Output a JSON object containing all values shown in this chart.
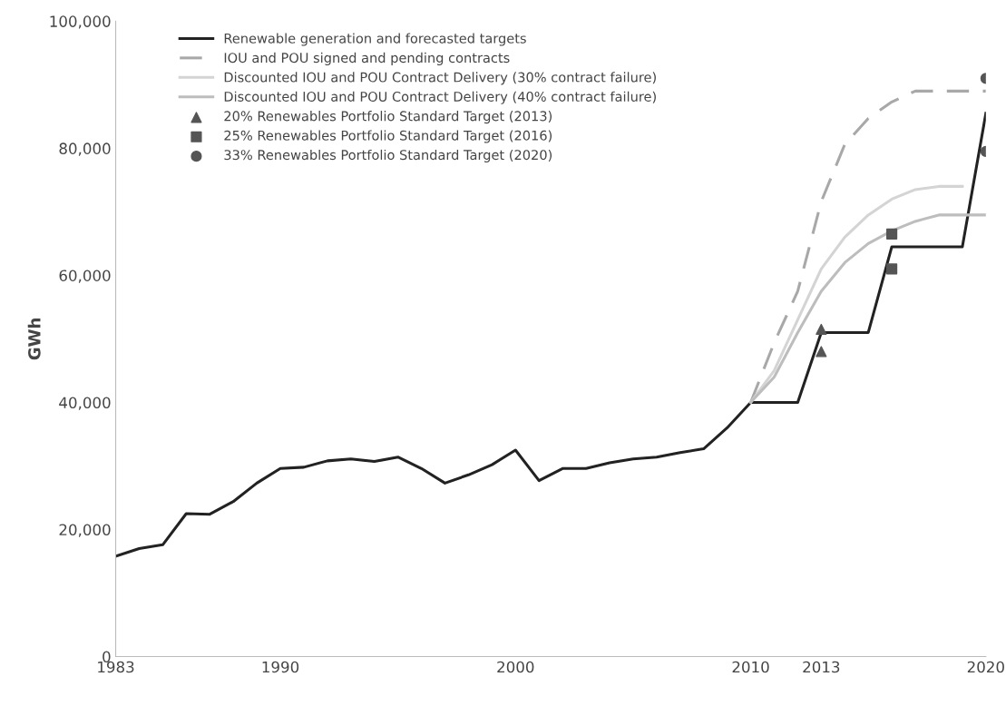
{
  "chart_data": {
    "type": "line",
    "ylabel": "GWh",
    "xlim": [
      1983,
      2020
    ],
    "xticks": [
      1983,
      1990,
      2000,
      2010,
      2013,
      2020
    ],
    "ylim": [
      0,
      100000
    ],
    "yticks": [
      {
        "value": 0,
        "label": "0"
      },
      {
        "value": 20000,
        "label": "20,000"
      },
      {
        "value": 40000,
        "label": "40,000"
      },
      {
        "value": 60000,
        "label": "60,000"
      },
      {
        "value": 80000,
        "label": "80,000"
      },
      {
        "value": 100000,
        "label": "100,000"
      }
    ],
    "grid": false,
    "legend": "top left",
    "series": [
      {
        "name": "Renewable generation and forecasted targets",
        "color": "#222222",
        "line_style": "solid",
        "marker": "none",
        "x": [
          1983,
          1984,
          1985,
          1986,
          1987,
          1988,
          1989,
          1990,
          1991,
          1992,
          1993,
          1994,
          1995,
          1996,
          1997,
          1998,
          1999,
          2000,
          2001,
          2002,
          2003,
          2004,
          2005,
          2006,
          2007,
          2008,
          2009,
          2010,
          2011,
          2012,
          2013,
          2014,
          2015,
          2016,
          2017,
          2018,
          2019,
          2020
        ],
        "values": [
          15800,
          17000,
          17600,
          22500,
          22400,
          24400,
          27300,
          29600,
          29800,
          30800,
          31100,
          30700,
          31400,
          29600,
          27300,
          28600,
          30200,
          32500,
          27700,
          29600,
          29600,
          30500,
          31100,
          31400,
          32100,
          32700,
          36000,
          40000,
          40000,
          40000,
          51000,
          51000,
          51000,
          64500,
          64500,
          64500,
          64500,
          85500
        ]
      },
      {
        "name": "IOU and POU signed and pending contracts",
        "color": "#a8a8a8",
        "line_style": "dashed",
        "marker": "none",
        "x": [
          2010,
          2011,
          2012,
          2013,
          2014,
          2015,
          2016,
          2017,
          2018,
          2019,
          2020
        ],
        "values": [
          40000,
          49400,
          57500,
          71600,
          80600,
          84700,
          87300,
          89000,
          89000,
          89000,
          89000
        ]
      },
      {
        "name": "Discounted IOU and POU Contract Delivery (30% contract failure)",
        "color": "#d4d4d4",
        "line_style": "solid",
        "marker": "none",
        "x": [
          2010,
          2011,
          2012,
          2013,
          2014,
          2015,
          2016,
          2017,
          2018,
          2019
        ],
        "values": [
          40000,
          45000,
          53000,
          61000,
          66000,
          69500,
          72000,
          73500,
          74000,
          74000
        ]
      },
      {
        "name": "Discounted IOU and POU Contract Delivery (40% contract failure)",
        "color": "#bdbdbd",
        "line_style": "solid",
        "marker": "none",
        "x": [
          2010,
          2011,
          2012,
          2013,
          2014,
          2015,
          2016,
          2017,
          2018,
          2019,
          2020
        ],
        "values": [
          40000,
          44000,
          51000,
          57500,
          62000,
          65000,
          67000,
          68500,
          69500,
          69500,
          69500
        ]
      },
      {
        "name": "20% Renewables Portfolio Standard Target (2013)",
        "type": "scatter",
        "color": "#555555",
        "marker": "triangle",
        "x": [
          2013,
          2013
        ],
        "values": [
          48000,
          51500
        ]
      },
      {
        "name": "25% Renewables Portfolio Standard Target (2016)",
        "type": "scatter",
        "color": "#555555",
        "marker": "square",
        "x": [
          2016,
          2016
        ],
        "values": [
          61000,
          66500
        ]
      },
      {
        "name": "33% Renewables Portfolio Standard Target (2020)",
        "type": "scatter",
        "color": "#555555",
        "marker": "circle",
        "x": [
          2020,
          2020
        ],
        "values": [
          79500,
          91000
        ]
      }
    ]
  }
}
